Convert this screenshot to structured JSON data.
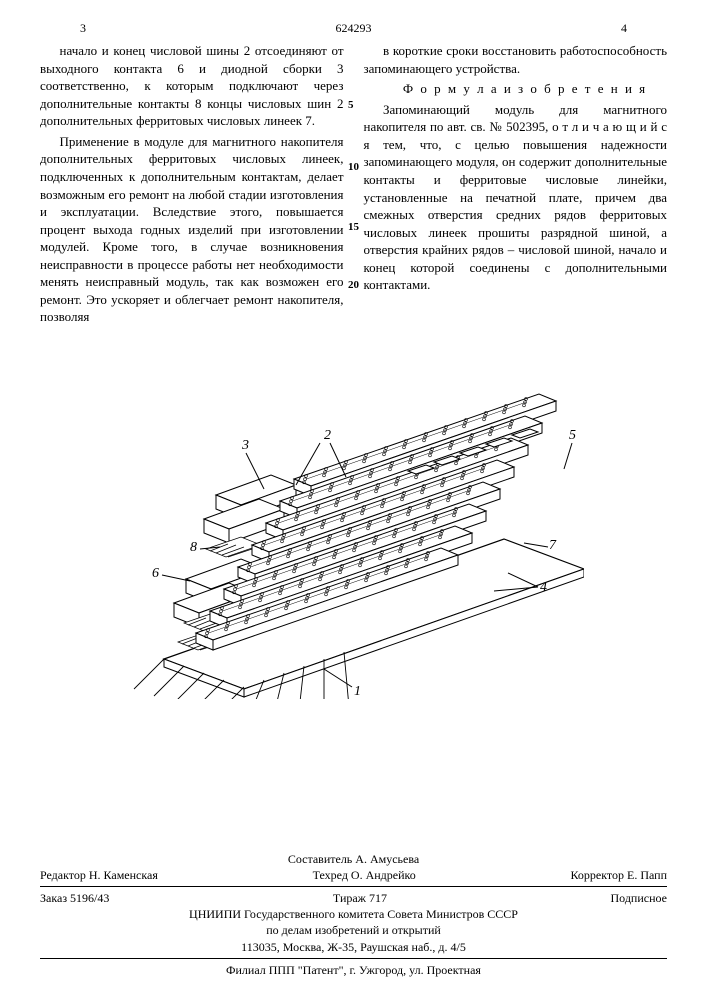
{
  "page_number_left": "3",
  "doc_number": "624293",
  "page_number_right": "4",
  "side_markers": [
    "5",
    "10",
    "15",
    "20"
  ],
  "col_left": {
    "p1": "начало и конец числовой шины 2 отсоеди­няют от выходного контакта 6 и диодной сборки 3 соответственно, к которым под­ключают через дополнительные контакты 8 концы числовых шин 2 дополнительных ферритовых числовых линеек 7.",
    "p2": "Применение в модуле для магнитного накопителя дополнительных ферритовых числовых линеек, подключенных к допол­нительным контактам, делает возможным его ремонт на любой стадии изготовле­ния и эксплуатации. Вследствие этого, повышается процент выхода годных изде­лий при изготовлении модулей. Кроме того, в случае возникновения неисправ­ности в процессе работы нет необходимо­сти менять неисправный модуль, так как возможен его ремонт. Это ускоряет и облегчает ремонт накопителя, позволяя"
  },
  "col_right": {
    "p1": "в короткие сроки восстановить работоспо­собность запоминающего устройства.",
    "formula_title": "Ф о р м у л а  и з о б р е т е н и я",
    "p2": "Запоминающий модуль для магнитного накопителя по авт. св. № 502395, о т ­л и ч а ю щ и й с я  тем, что, с целью повышения надежности запоминающего модуля, он содержит дополнительные кон­такты и ферритовые числовые линейки, установленные на печатной плате, причем два смежных отверстия средних рядов ферритовых числовых линеек прошиты раз­рядной шиной, а отверстия крайних ря­дов – числовой шиной, начало и конец которой соединены с дополнительными контактами."
  },
  "figure": {
    "labels": [
      "1",
      "2",
      "3",
      "4",
      "5",
      "6",
      "7",
      "8"
    ],
    "stroke": "#000000",
    "fill_board": "#ffffff",
    "bar_count": 8,
    "dots_per_bar": 30,
    "hatched_small_boxes": 3
  },
  "footer": {
    "compiler": "Составитель А. Амусьева",
    "editor": "Редактор Н. Каменская",
    "techred": "Техред О. Андрейко",
    "corrector": "Корректор Е. Папп",
    "order": "Заказ 5196/43",
    "tirazh": "Тираж 717",
    "sign": "Подписное",
    "org1": "ЦНИИПИ Государственного комитета Совета Министров СССР",
    "org2": "по делам изобретений и открытий",
    "addr1": "113035, Москва, Ж-35, Раушская наб., д. 4/5",
    "addr2": "Филиал ППП \"Патент\", г. Ужгород, ул. Проектная"
  }
}
